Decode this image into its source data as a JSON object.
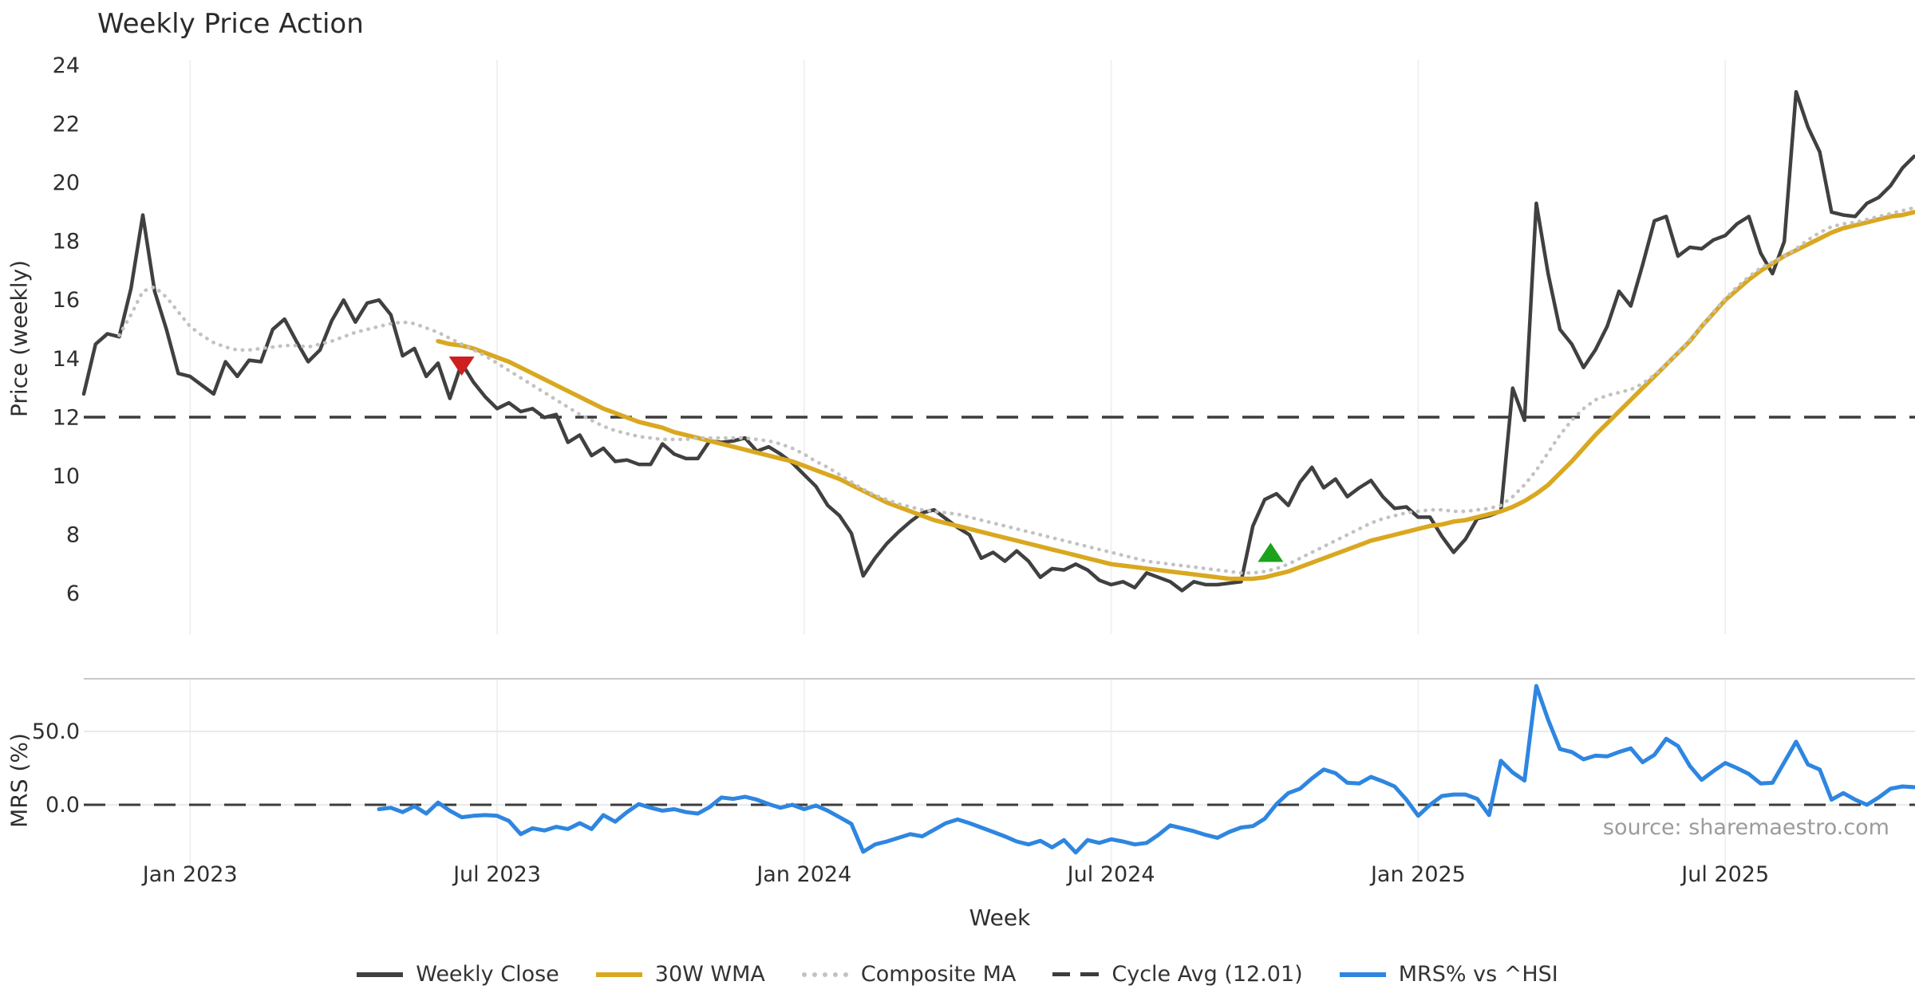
{
  "title": "Weekly Price Action",
  "source_text": "source: sharemaestro.com",
  "price_panel": {
    "y_axis_label": "Price (weekly)",
    "y_ticks": [
      24,
      22,
      20,
      18,
      16,
      14,
      12,
      10,
      8,
      6
    ]
  },
  "mrs_panel": {
    "y_axis_label": "MRS (%)",
    "y_ticks": [
      {
        "value": 50,
        "label": "50.0"
      },
      {
        "value": 0,
        "label": "0.0"
      }
    ]
  },
  "x_axis": {
    "label": "Week",
    "ticks": [
      {
        "week": 9,
        "label": "Jan 2023"
      },
      {
        "week": 35,
        "label": "Jul 2023"
      },
      {
        "week": 61,
        "label": "Jan 2024"
      },
      {
        "week": 87,
        "label": "Jul 2024"
      },
      {
        "week": 113,
        "label": "Jan 2025"
      },
      {
        "week": 139,
        "label": "Jul 2025"
      }
    ]
  },
  "colors": {
    "close": "#404040",
    "wma": "#d9a820",
    "composite": "#c2c2c2",
    "cycle_dash": "#3c3c3c",
    "mrs": "#2e86e0",
    "grid": "#eef1f4",
    "mrs_grid": "#eaeaea",
    "mrs_spine": "#c9c9c9",
    "sell_marker": "#cd1f1f",
    "buy_marker": "#1ca21c",
    "tick_text": "#2f2f2f"
  },
  "legend": {
    "items": [
      {
        "id": "close",
        "label": "Weekly Close",
        "style": "solid",
        "color": "#404040"
      },
      {
        "id": "wma",
        "label": "30W WMA",
        "style": "solid",
        "color": "#d9a820"
      },
      {
        "id": "composite",
        "label": "Composite MA",
        "style": "dotted",
        "color": "#c2c2c2"
      },
      {
        "id": "cycle",
        "label": "Cycle Avg (12.01)",
        "style": "dashed",
        "color": "#3c3c3c"
      },
      {
        "id": "mrs",
        "label": "MRS% vs ^HSI",
        "style": "solid",
        "color": "#2e86e0"
      }
    ]
  },
  "chart_data": {
    "type": "line",
    "x_unit": "week",
    "grid": "vertical-only",
    "price_ylim": [
      4.6,
      24.2
    ],
    "mrs_ylim": [
      -45,
      86
    ],
    "cycle_avg": 12.01,
    "series": [
      {
        "name": "Weekly Close",
        "panel": "price",
        "start_week": 0,
        "values": [
          12.8,
          14.5,
          14.85,
          14.75,
          16.4,
          18.9,
          16.3,
          15.0,
          13.5,
          13.4,
          13.1,
          12.8,
          13.9,
          13.4,
          13.95,
          13.9,
          15.0,
          15.35,
          14.6,
          13.9,
          14.3,
          15.3,
          16.0,
          15.25,
          15.9,
          16.0,
          15.5,
          14.1,
          14.35,
          13.4,
          13.85,
          12.65,
          13.85,
          13.2,
          12.7,
          12.3,
          12.5,
          12.2,
          12.3,
          12.0,
          12.1,
          11.15,
          11.4,
          10.7,
          10.95,
          10.5,
          10.55,
          10.4,
          10.4,
          11.1,
          10.75,
          10.6,
          10.6,
          11.2,
          11.15,
          11.2,
          11.3,
          10.85,
          11.0,
          10.75,
          10.45,
          10.05,
          9.65,
          9.0,
          8.65,
          8.05,
          6.6,
          7.2,
          7.7,
          8.1,
          8.45,
          8.75,
          8.85,
          8.55,
          8.25,
          8.0,
          7.2,
          7.4,
          7.1,
          7.45,
          7.1,
          6.55,
          6.85,
          6.8,
          7.0,
          6.8,
          6.45,
          6.3,
          6.4,
          6.2,
          6.7,
          6.55,
          6.4,
          6.1,
          6.4,
          6.3,
          6.3,
          6.35,
          6.4,
          8.3,
          9.2,
          9.4,
          9.0,
          9.8,
          10.3,
          9.6,
          9.9,
          9.3,
          9.6,
          9.85,
          9.3,
          8.9,
          8.95,
          8.6,
          8.6,
          7.95,
          7.4,
          7.85,
          8.55,
          8.65,
          8.8,
          13.0,
          11.9,
          19.3,
          16.9,
          15.0,
          14.5,
          13.7,
          14.3,
          15.1,
          16.3,
          15.8,
          17.2,
          18.7,
          18.85,
          17.5,
          17.8,
          17.75,
          18.05,
          18.2,
          18.6,
          18.85,
          17.6,
          16.9,
          18.0,
          23.1,
          21.9,
          21.05,
          19.0,
          18.9,
          18.85,
          19.3,
          19.5,
          19.9,
          20.5,
          20.9
        ]
      },
      {
        "name": "30W WMA",
        "panel": "price",
        "start_week": 30,
        "values": [
          14.6,
          14.5,
          14.45,
          14.35,
          14.2,
          14.05,
          13.9,
          13.7,
          13.5,
          13.3,
          13.1,
          12.9,
          12.7,
          12.5,
          12.3,
          12.15,
          12.0,
          11.85,
          11.75,
          11.65,
          11.5,
          11.4,
          11.3,
          11.2,
          11.1,
          11.0,
          10.9,
          10.8,
          10.7,
          10.6,
          10.5,
          10.35,
          10.2,
          10.05,
          9.9,
          9.7,
          9.5,
          9.3,
          9.1,
          8.95,
          8.8,
          8.65,
          8.5,
          8.4,
          8.3,
          8.2,
          8.1,
          8.0,
          7.9,
          7.8,
          7.7,
          7.6,
          7.5,
          7.4,
          7.3,
          7.2,
          7.1,
          7.0,
          6.95,
          6.9,
          6.85,
          6.8,
          6.75,
          6.7,
          6.65,
          6.6,
          6.55,
          6.5,
          6.5,
          6.5,
          6.55,
          6.65,
          6.75,
          6.9,
          7.05,
          7.2,
          7.35,
          7.5,
          7.65,
          7.8,
          7.9,
          8.0,
          8.1,
          8.2,
          8.3,
          8.35,
          8.45,
          8.5,
          8.6,
          8.7,
          8.8,
          8.95,
          9.15,
          9.4,
          9.7,
          10.1,
          10.5,
          10.95,
          11.4,
          11.8,
          12.2,
          12.6,
          13.0,
          13.4,
          13.8,
          14.2,
          14.6,
          15.1,
          15.55,
          16.0,
          16.35,
          16.7,
          17.0,
          17.25,
          17.5,
          17.7,
          17.9,
          18.1,
          18.3,
          18.45,
          18.55,
          18.65,
          18.75,
          18.85,
          18.9,
          19.0
        ]
      },
      {
        "name": "Composite MA",
        "panel": "price",
        "start_week": 3,
        "values": [
          14.8,
          15.5,
          16.3,
          16.45,
          16.1,
          15.6,
          15.1,
          14.8,
          14.55,
          14.4,
          14.3,
          14.3,
          14.35,
          14.4,
          14.45,
          14.45,
          14.4,
          14.5,
          14.6,
          14.75,
          14.9,
          15.0,
          15.1,
          15.2,
          15.25,
          15.2,
          15.05,
          14.9,
          14.7,
          14.5,
          14.3,
          14.1,
          13.85,
          13.6,
          13.35,
          13.1,
          12.85,
          12.6,
          12.35,
          12.1,
          11.9,
          11.7,
          11.55,
          11.45,
          11.35,
          11.3,
          11.25,
          11.25,
          11.25,
          11.3,
          11.3,
          11.3,
          11.3,
          11.3,
          11.25,
          11.2,
          11.1,
          10.95,
          10.75,
          10.5,
          10.3,
          10.05,
          9.8,
          9.55,
          9.35,
          9.2,
          9.05,
          8.95,
          8.85,
          8.8,
          8.75,
          8.7,
          8.6,
          8.5,
          8.4,
          8.3,
          8.2,
          8.1,
          8.0,
          7.9,
          7.8,
          7.7,
          7.6,
          7.5,
          7.4,
          7.3,
          7.2,
          7.1,
          7.05,
          7.0,
          6.95,
          6.9,
          6.85,
          6.8,
          6.75,
          6.7,
          6.7,
          6.75,
          6.85,
          7.0,
          7.2,
          7.4,
          7.6,
          7.8,
          8.0,
          8.2,
          8.4,
          8.55,
          8.65,
          8.75,
          8.8,
          8.85,
          8.85,
          8.8,
          8.8,
          8.85,
          8.9,
          9.0,
          9.3,
          9.7,
          10.2,
          10.8,
          11.4,
          11.9,
          12.3,
          12.6,
          12.75,
          12.85,
          12.95,
          13.15,
          13.45,
          13.8,
          14.2,
          14.65,
          15.1,
          15.6,
          16.05,
          16.45,
          16.8,
          17.1,
          17.3,
          17.5,
          17.75,
          18.05,
          18.3,
          18.5,
          18.6,
          18.65,
          18.75,
          18.85,
          18.95,
          19.05,
          19.15
        ]
      },
      {
        "name": "MRS% vs ^HSI",
        "panel": "mrs",
        "start_week": 25,
        "values": [
          -3,
          -2,
          -5,
          -1,
          -6,
          1.5,
          -4,
          -8.5,
          -7.5,
          -7,
          -7.5,
          -11,
          -20,
          -16,
          -17.5,
          -15,
          -16.5,
          -12.5,
          -16.5,
          -7,
          -11.5,
          -5,
          0.5,
          -2,
          -4,
          -3,
          -5,
          -6,
          -1.5,
          5,
          4,
          5.5,
          3.5,
          0.5,
          -2,
          0,
          -3,
          -0.5,
          -4,
          -8.5,
          -13,
          -32,
          -27,
          -25,
          -22.5,
          -20,
          -21.5,
          -17,
          -12.5,
          -10,
          -12.5,
          -15.5,
          -18.5,
          -21.5,
          -25,
          -27,
          -24.5,
          -29,
          -24,
          -32.5,
          -24,
          -26,
          -23.5,
          -25,
          -27,
          -26,
          -20.5,
          -14,
          -16,
          -18,
          -20.5,
          -22.5,
          -18.5,
          -15.5,
          -14.5,
          -9.5,
          0.5,
          8,
          11,
          18,
          24,
          21.5,
          15,
          14.5,
          19,
          16,
          12.5,
          3.5,
          -7.5,
          0,
          6,
          7,
          7,
          4,
          -7,
          30,
          22,
          16.5,
          81,
          58,
          38,
          36,
          31,
          33.5,
          33,
          36,
          38.5,
          29,
          34,
          45,
          40,
          26.5,
          17,
          23,
          28.5,
          25,
          21,
          14.5,
          15,
          29,
          43,
          27.5,
          24,
          3.5,
          8,
          3.5,
          0,
          5,
          11,
          12.5,
          12
        ]
      },
      {
        "name": "Cycle Avg (12.01)",
        "panel": "price",
        "type": "hline",
        "value": 12.01
      }
    ],
    "markers": [
      {
        "id": "sell-signal",
        "shape": "triangle-down",
        "week": 32,
        "value": 13.75,
        "color": "#cd1f1f"
      },
      {
        "id": "buy-signal",
        "shape": "triangle-up",
        "week": 100.5,
        "value": 7.4,
        "color": "#1ca21c"
      }
    ]
  }
}
